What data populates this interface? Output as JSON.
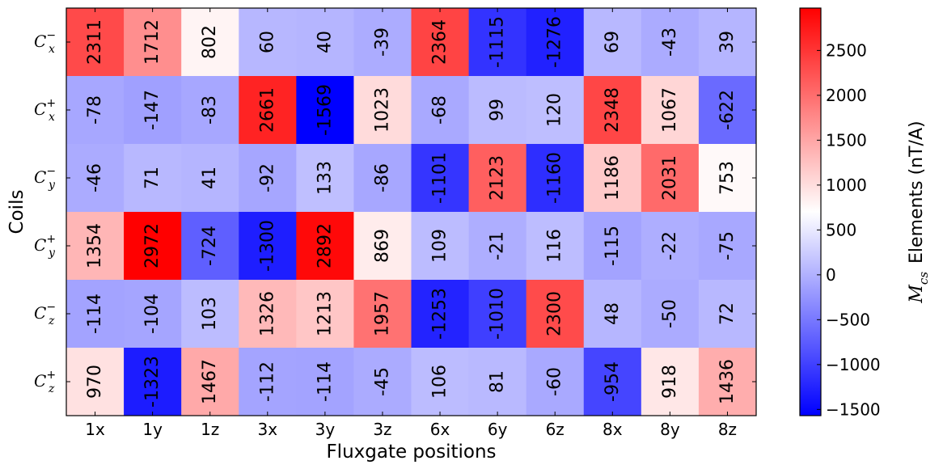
{
  "chart_data": {
    "type": "heatmap",
    "xlabel": "Fluxgate positions",
    "ylabel": "Coils",
    "x_categories": [
      "1x",
      "1y",
      "1z",
      "3x",
      "3y",
      "3z",
      "6x",
      "6y",
      "6z",
      "8x",
      "8y",
      "8z"
    ],
    "y_categories": [
      {
        "base": "C",
        "sub": "x",
        "sup": "−"
      },
      {
        "base": "C",
        "sub": "x",
        "sup": "+"
      },
      {
        "base": "C",
        "sub": "y",
        "sup": "−"
      },
      {
        "base": "C",
        "sub": "y",
        "sup": "+"
      },
      {
        "base": "C",
        "sub": "z",
        "sup": "−"
      },
      {
        "base": "C",
        "sub": "z",
        "sup": "+"
      }
    ],
    "values": [
      [
        2311,
        1712,
        802,
        60,
        40,
        -39,
        2364,
        -1115,
        -1276,
        69,
        -43,
        39
      ],
      [
        -78,
        -147,
        -83,
        2661,
        -1569,
        1023,
        -68,
        99,
        120,
        2348,
        1067,
        -622
      ],
      [
        -46,
        71,
        41,
        -92,
        133,
        -86,
        -1101,
        2123,
        -1160,
        1186,
        2031,
        753
      ],
      [
        1354,
        2972,
        -724,
        -1300,
        2892,
        869,
        109,
        -21,
        116,
        -115,
        -22,
        -75
      ],
      [
        -114,
        -104,
        103,
        1326,
        1213,
        1957,
        -1253,
        -1010,
        2300,
        48,
        -50,
        72
      ],
      [
        970,
        -1323,
        1467,
        -112,
        -114,
        -45,
        106,
        81,
        -60,
        -954,
        918,
        1436
      ]
    ],
    "colormap": "bwr",
    "colors": {
      "low": "#0000ff",
      "mid": "#ffffff",
      "high": "#ff0000"
    },
    "vmin": -1569,
    "vmax": 2972,
    "colorbar": {
      "label_prefix": "M",
      "label_sub": "cs",
      "label_suffix": "Elements  (nT/A)",
      "ticks": [
        2500,
        2000,
        1500,
        1000,
        500,
        0,
        -500,
        -1000,
        -1500
      ],
      "tick_labels": [
        "2500",
        "2000",
        "1500",
        "1000",
        "500",
        "0",
        "−500",
        "−1000",
        "−1500"
      ]
    },
    "cell_labels_rotated": true
  }
}
